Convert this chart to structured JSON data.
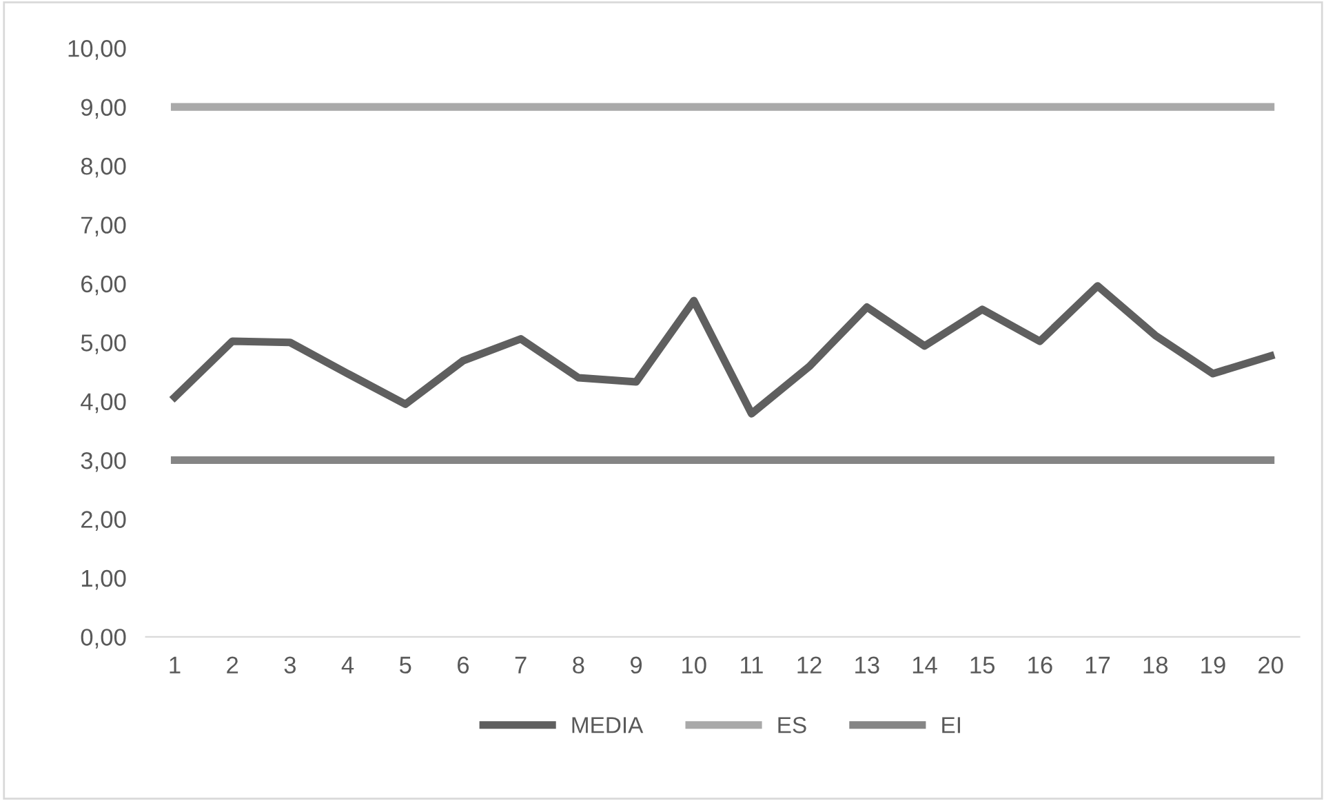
{
  "chart_data": {
    "type": "line",
    "categories": [
      "1",
      "2",
      "3",
      "4",
      "5",
      "6",
      "7",
      "8",
      "9",
      "10",
      "11",
      "12",
      "13",
      "14",
      "15",
      "16",
      "17",
      "18",
      "19",
      "20"
    ],
    "series": [
      {
        "name": "MEDIA",
        "color": "#5f5f5f",
        "values": [
          4.07,
          5.02,
          5.0,
          4.47,
          3.95,
          4.69,
          5.06,
          4.4,
          4.33,
          5.71,
          3.79,
          4.59,
          5.6,
          4.94,
          5.56,
          5.02,
          5.96,
          5.12,
          4.47,
          4.77
        ]
      },
      {
        "name": "ES",
        "color": "#a9a9a9",
        "values": [
          9,
          9,
          9,
          9,
          9,
          9,
          9,
          9,
          9,
          9,
          9,
          9,
          9,
          9,
          9,
          9,
          9,
          9,
          9,
          9
        ]
      },
      {
        "name": "EI",
        "color": "#858585",
        "values": [
          3,
          3,
          3,
          3,
          3,
          3,
          3,
          3,
          3,
          3,
          3,
          3,
          3,
          3,
          3,
          3,
          3,
          3,
          3,
          3
        ]
      }
    ],
    "ylim": [
      0,
      10
    ],
    "yticks": [
      {
        "value": 0,
        "label": "0,00"
      },
      {
        "value": 1,
        "label": "1,00"
      },
      {
        "value": 2,
        "label": "2,00"
      },
      {
        "value": 3,
        "label": "3,00"
      },
      {
        "value": 4,
        "label": "4,00"
      },
      {
        "value": 5,
        "label": "5,00"
      },
      {
        "value": 6,
        "label": "6,00"
      },
      {
        "value": 7,
        "label": "7,00"
      },
      {
        "value": 8,
        "label": "8,00"
      },
      {
        "value": 9,
        "label": "9,00"
      },
      {
        "value": 10,
        "label": "10,00"
      }
    ],
    "grid": false,
    "legend": "bottom",
    "marker": "none",
    "line_style": "solid"
  }
}
